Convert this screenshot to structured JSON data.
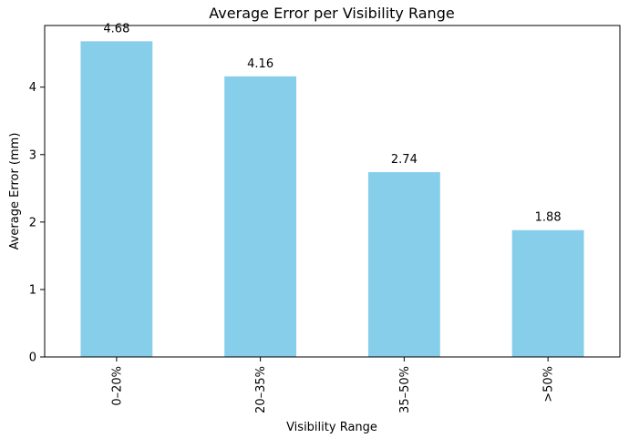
{
  "chart_data": {
    "type": "bar",
    "title": "Average Error per Visibility Range",
    "xlabel": "Visibility Range",
    "ylabel": "Average Error (mm)",
    "categories": [
      "0–20%",
      "20–35%",
      "35–50%",
      ">50%"
    ],
    "values": [
      4.68,
      4.16,
      2.74,
      1.88
    ],
    "data_labels": [
      "4.68",
      "4.16",
      "2.74",
      "1.88"
    ],
    "yticks": [
      0,
      1,
      2,
      3,
      4
    ],
    "ylim": [
      0,
      4.914
    ],
    "grid": false,
    "legend": "none",
    "bar_color": "#87ceeb"
  }
}
